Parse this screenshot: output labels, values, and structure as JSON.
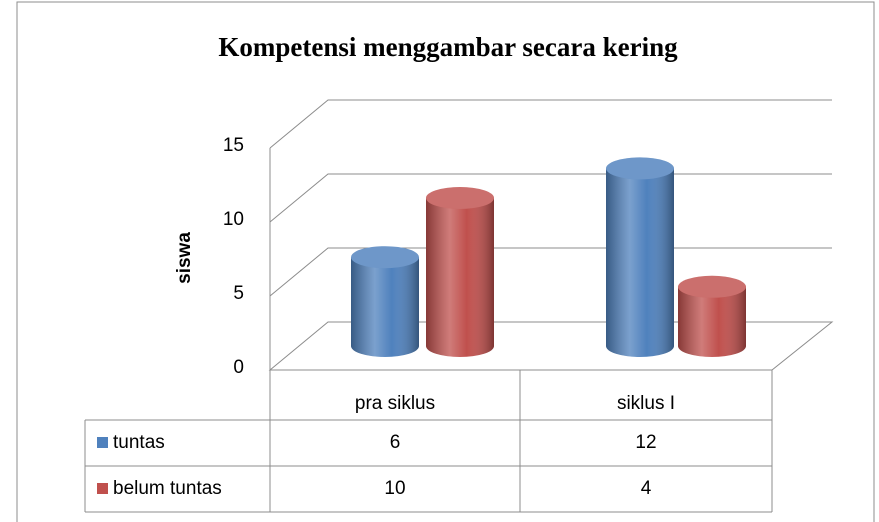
{
  "chart_data": {
    "type": "bar3d",
    "title": "Kompetensi menggambar secara kering",
    "y_label": "siswa",
    "categories": [
      "pra siklus",
      "siklus I"
    ],
    "series": [
      {
        "name": "tuntas",
        "color": "#4f81bd",
        "values": [
          6,
          12
        ]
      },
      {
        "name": "belum tuntas",
        "color": "#c0504d",
        "values": [
          10,
          4
        ]
      }
    ],
    "ylim": [
      0,
      15
    ],
    "yticks": [
      0,
      5,
      10,
      15
    ],
    "grid": true,
    "data_table": true
  }
}
